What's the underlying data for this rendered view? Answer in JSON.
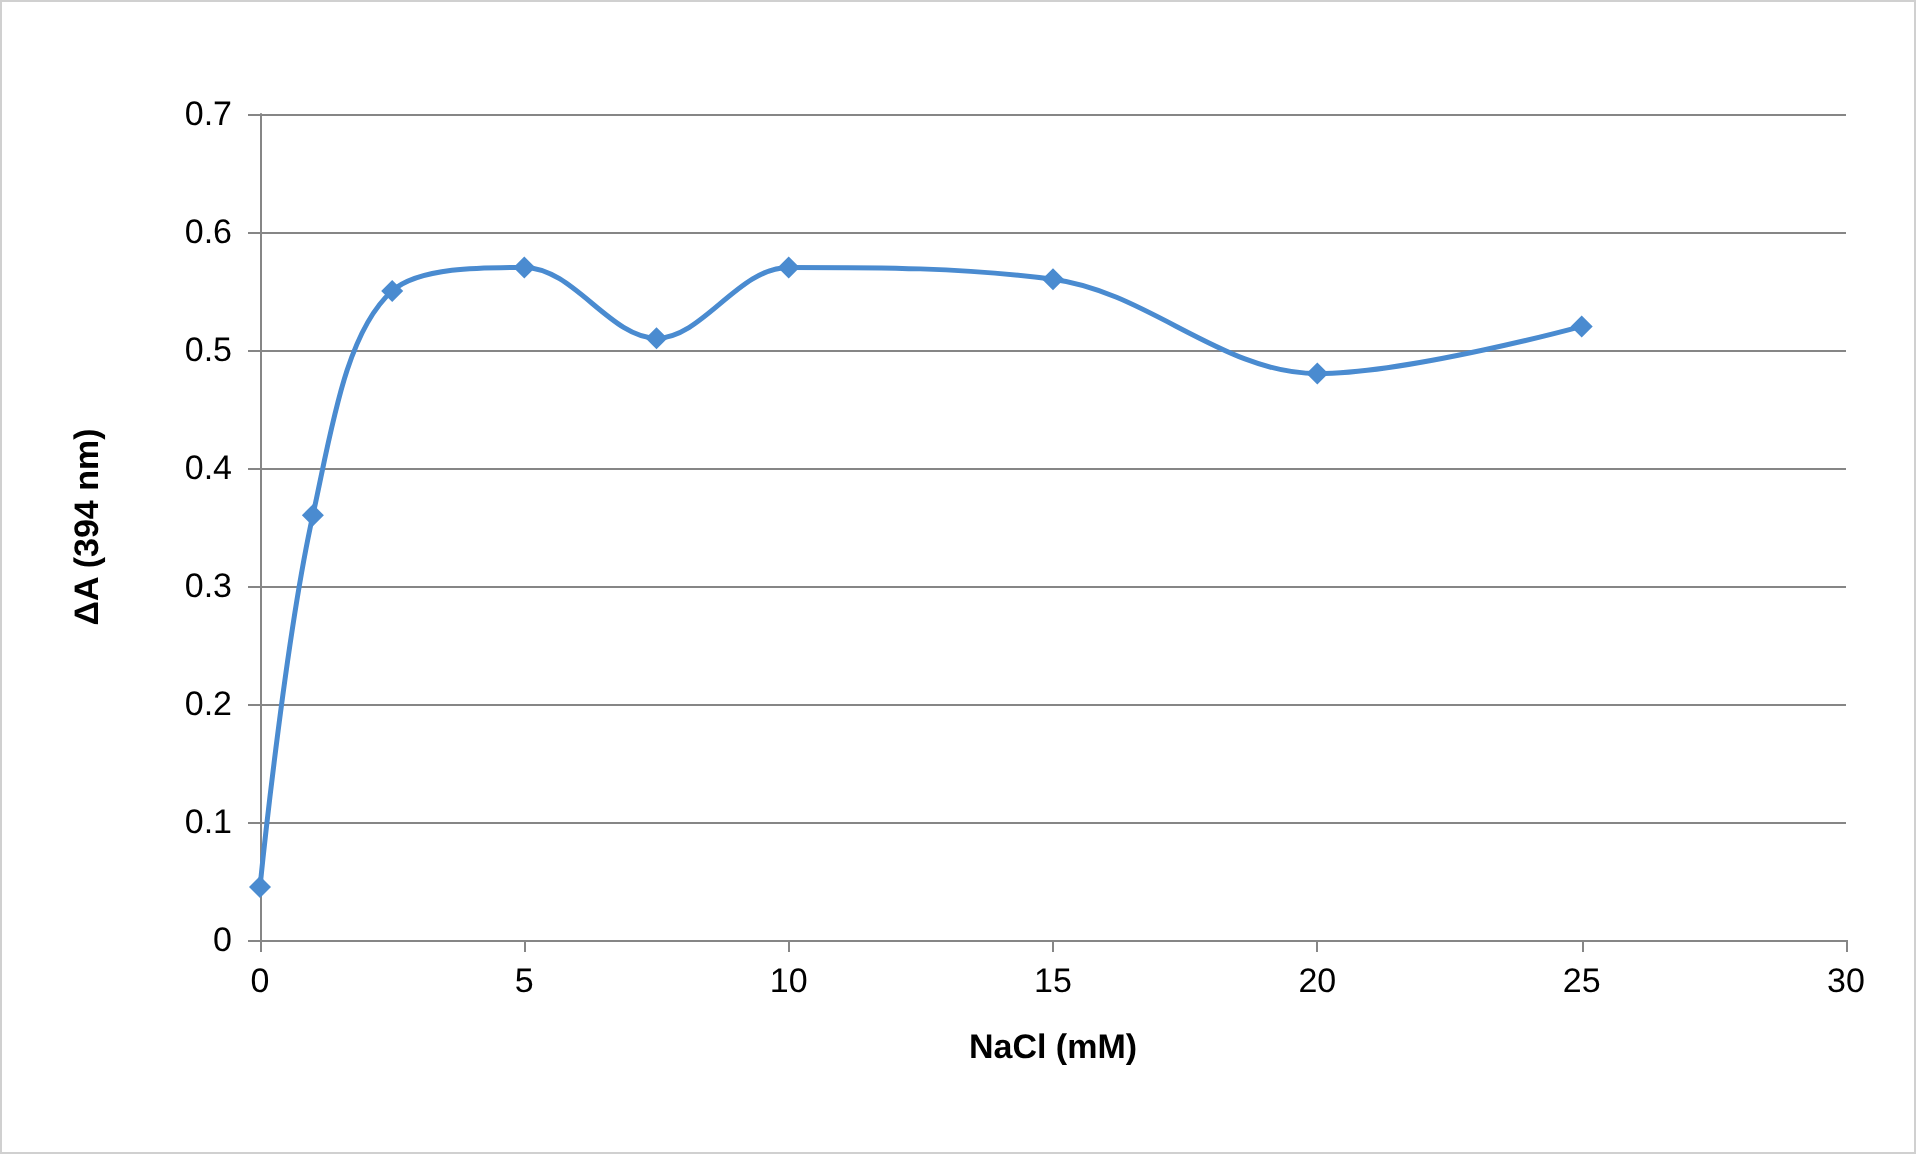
{
  "chart_data": {
    "type": "line",
    "xlabel": "NaCl (mM)",
    "ylabel": "ΔA (394 nm)",
    "x": [
      0,
      1,
      2.5,
      5,
      7.5,
      10,
      15,
      20,
      25
    ],
    "series": [
      {
        "color": "#4a8bd0",
        "values": [
          0.045,
          0.36,
          0.55,
          0.57,
          0.51,
          0.57,
          0.56,
          0.48,
          0.52
        ]
      }
    ],
    "xlim": [
      0,
      30
    ],
    "xticks": [
      0,
      5,
      10,
      15,
      20,
      25,
      30
    ],
    "ylim": [
      0,
      0.7
    ],
    "yticks": [
      0,
      0.1,
      0.2,
      0.3,
      0.4,
      0.5,
      0.6,
      0.7
    ],
    "grid": "y",
    "marker": "diamond",
    "line_style": "solid"
  }
}
